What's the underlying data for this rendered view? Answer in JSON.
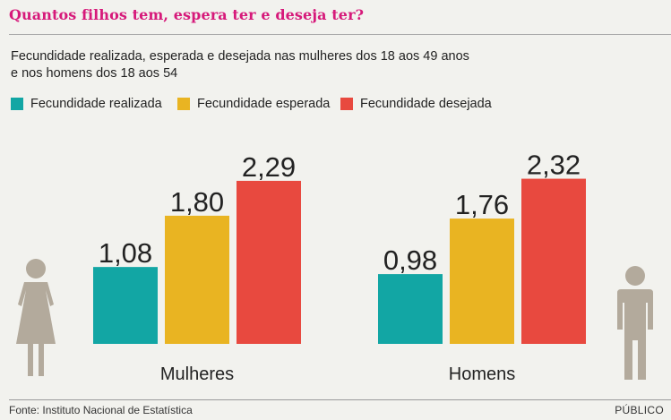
{
  "title": "Quantos filhos tem, espera ter e deseja ter?",
  "subtitle_line1": "Fecundidade realizada, esperada e desejada nas mulheres dos 18 aos 49 anos",
  "subtitle_line2": "e nos homens dos 18 aos 54",
  "source": "Fonte: Instituto Nacional de Estatística",
  "brand": "PÚBLICO",
  "colors": {
    "realizada": "#12a6a4",
    "esperada": "#e9b422",
    "desejada": "#e8493f",
    "figure": "#b3aa9c",
    "title": "#d6197a"
  },
  "icons": [
    "woman-icon",
    "man-icon"
  ],
  "chart_data": {
    "type": "bar",
    "title": "Quantos filhos tem, espera ter e deseja ter?",
    "categories": [
      "Mulheres",
      "Homens"
    ],
    "series": [
      {
        "name": "Fecundidade realizada",
        "values": [
          1.08,
          0.98
        ],
        "labels": [
          "1,08",
          "0,98"
        ],
        "color": "#12a6a4"
      },
      {
        "name": "Fecundidade esperada",
        "values": [
          1.8,
          1.76
        ],
        "labels": [
          "1,80",
          "1,76"
        ],
        "color": "#e9b422"
      },
      {
        "name": "Fecundidade desejada",
        "values": [
          2.29,
          2.32
        ],
        "labels": [
          "2,29",
          "2,32"
        ],
        "color": "#e8493f"
      }
    ],
    "legend": "top-left",
    "grid": false
  }
}
